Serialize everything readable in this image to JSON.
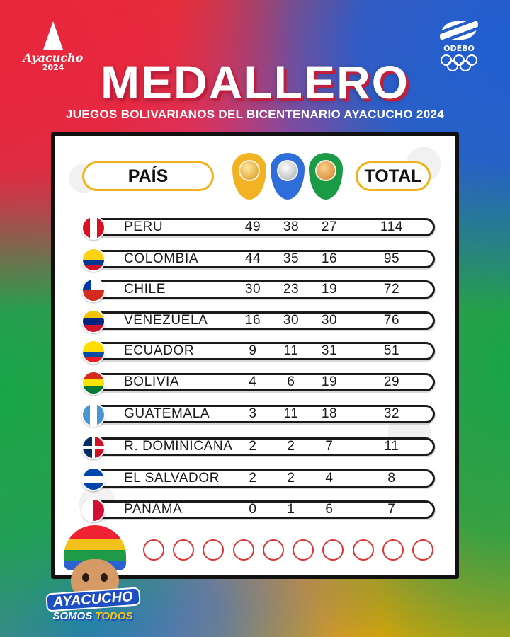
{
  "header": {
    "logo_left_name": "Ayacucho",
    "logo_left_year": "2024",
    "logo_right_org": "ODEBO",
    "title": "MEDALLERO",
    "subtitle": "JUEGOS BOLIVARIANOS DEL BICENTENARIO AYACUCHO 2024"
  },
  "table": {
    "col_country": "PAÍS",
    "col_total": "TOTAL",
    "rows": [
      {
        "country": "PERÚ",
        "gold": "49",
        "silver": "38",
        "bronze": "27",
        "total": "114",
        "flag": "peru"
      },
      {
        "country": "COLOMBIA",
        "gold": "44",
        "silver": "35",
        "bronze": "16",
        "total": "95",
        "flag": "colombia"
      },
      {
        "country": "CHILE",
        "gold": "30",
        "silver": "23",
        "bronze": "19",
        "total": "72",
        "flag": "chile"
      },
      {
        "country": "VENEZUELA",
        "gold": "16",
        "silver": "30",
        "bronze": "30",
        "total": "76",
        "flag": "venezuela"
      },
      {
        "country": "ECUADOR",
        "gold": "9",
        "silver": "11",
        "bronze": "31",
        "total": "51",
        "flag": "ecuador"
      },
      {
        "country": "BOLIVIA",
        "gold": "4",
        "silver": "6",
        "bronze": "19",
        "total": "29",
        "flag": "bolivia"
      },
      {
        "country": "GUATEMALA",
        "gold": "3",
        "silver": "11",
        "bronze": "18",
        "total": "32",
        "flag": "guatemala"
      },
      {
        "country": "R. DOMINICANA",
        "gold": "2",
        "silver": "2",
        "bronze": "7",
        "total": "11",
        "flag": "dominican-republic"
      },
      {
        "country": "EL SALVADOR",
        "gold": "2",
        "silver": "2",
        "bronze": "4",
        "total": "8",
        "flag": "el-salvador"
      },
      {
        "country": "PANAMÁ",
        "gold": "0",
        "silver": "1",
        "bronze": "6",
        "total": "7",
        "flag": "panama"
      }
    ]
  },
  "mascot": {
    "slogan_line1": "AYACUCHO",
    "slogan_line2a": "SOMOS",
    "slogan_line2b": "TODOS"
  },
  "colors": {
    "gold": "#f1b324",
    "silver_bg": "#2f6dd8",
    "bronze_bg": "#1b9b45",
    "pill_border": "#f0b21b"
  }
}
